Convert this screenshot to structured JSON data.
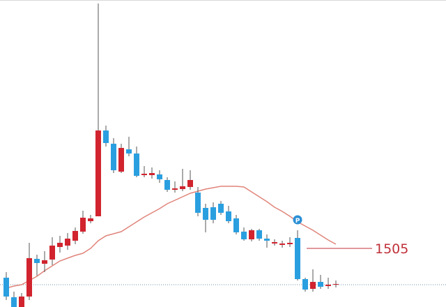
{
  "chart_data": {
    "type": "candlestick",
    "open": [
      1484,
      1470,
      1463,
      1470.5,
      1497.5,
      1494,
      1497,
      1506,
      1507,
      1510.5,
      1517,
      1524.5,
      1528,
      1589.5,
      1580,
      1560,
      1576,
      1573,
      1557.5,
      1557.5,
      1558,
      1554,
      1547,
      1547.5,
      1549,
      1545,
      1534,
      1534.5,
      1537,
      1531.5,
      1526.5,
      1517,
      1511.5,
      1518,
      1512,
      1508.5,
      1507.5,
      1508,
      1512.5,
      1483,
      1476,
      1481,
      1478,
      1479
    ],
    "high": [
      1488,
      1474,
      1473,
      1509,
      1500.5,
      1503,
      1513,
      1514,
      1516,
      1520,
      1532,
      1529,
      1680.5,
      1593,
      1584,
      1580,
      1585,
      1578,
      1564,
      1563,
      1561,
      1556,
      1553,
      1562,
      1561,
      1549,
      1537,
      1538,
      1539,
      1535.5,
      1529,
      1520,
      1519,
      1519,
      1515,
      1511.5,
      1510.5,
      1513,
      1518,
      1484,
      1490,
      1486,
      1484,
      1482
    ],
    "low": [
      1468,
      1463,
      1463,
      1468,
      1485.5,
      1488,
      1493,
      1502,
      1504,
      1508,
      1515.5,
      1523,
      1528,
      1578,
      1559,
      1559,
      1571,
      1556,
      1556,
      1555,
      1552,
      1545.5,
      1545,
      1546,
      1547,
      1528,
      1516.5,
      1523,
      1529,
      1523,
      1515,
      1510.5,
      1510,
      1510.5,
      1505.5,
      1507,
      1505.5,
      1506,
      1482,
      1474,
      1474,
      1476,
      1476,
      1477
    ],
    "close": [
      1470.5,
      1463,
      1470.5,
      1498,
      1494.5,
      1496.5,
      1507,
      1509,
      1512,
      1517.5,
      1527,
      1526.5,
      1589.5,
      1580.5,
      1561,
      1577,
      1573,
      1557,
      1558.5,
      1559,
      1554.5,
      1547,
      1548,
      1549.5,
      1554,
      1530.5,
      1525.5,
      1525.5,
      1530.5,
      1524.5,
      1516.5,
      1511.5,
      1518,
      1512,
      1510.5,
      1509.5,
      1508.5,
      1509,
      1483,
      1475.5,
      1481,
      1477.5,
      1479,
      1479.5
    ],
    "ma": [
      1476.5,
      1478,
      1479,
      1482,
      1485,
      1489,
      1492.5,
      1496,
      1498,
      1500,
      1501.5,
      1505,
      1510.5,
      1514,
      1515.5,
      1517,
      1520.5,
      1524,
      1527.5,
      1530.5,
      1533.5,
      1537,
      1539.5,
      1542,
      1544.5,
      1546,
      1547.5,
      1548.5,
      1549.5,
      1549.5,
      1549.5,
      1549,
      1545.5,
      1542,
      1538.5,
      1534.5,
      1531.5,
      1528,
      1524,
      1521,
      1518,
      1514.5,
      1511,
      1508
    ],
    "up_color": "#d1242f",
    "down_color": "#2a9fe0",
    "ma_color": "#e0847a",
    "level": 1505,
    "level_color": "#c0303a",
    "price_line": 1479,
    "annotation": "P",
    "ylim": [
      1463,
      1683
    ]
  }
}
